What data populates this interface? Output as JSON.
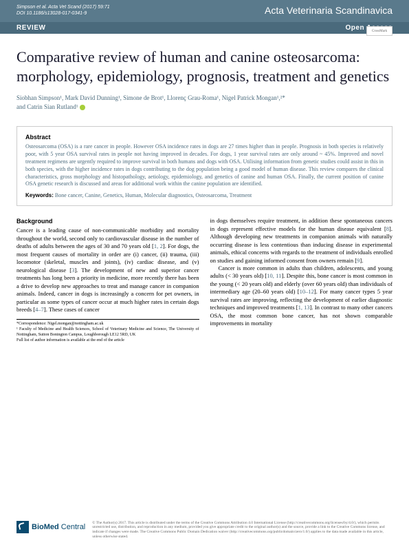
{
  "header": {
    "citation": "Simpson et al. Acta Vet Scand (2017) 59:71",
    "doi": "DOI 10.1186/s13028-017-0341-9",
    "journal": "Acta Veterinaria Scandinavica"
  },
  "review_bar": {
    "label": "REVIEW",
    "access": "Open Access"
  },
  "crossmark": "CrossMark",
  "title": "Comparative review of human and canine osteosarcoma: morphology, epidemiology, prognosis, treatment and genetics",
  "authors_line1": "Siobhan Simpson¹, Mark David Dunning¹, Simone de Brot¹, Llorenç Grau-Roma¹, Nigel Patrick Mongan¹,²*",
  "authors_line2": "and Catrin Sian Rutland¹",
  "abstract": {
    "heading": "Abstract",
    "text": "Osteosarcoma (OSA) is a rare cancer in people. However OSA incidence rates in dogs are 27 times higher than in people. Prognosis in both species is relatively poor, with 5 year OSA survival rates in people not having improved in decades. For dogs, 1 year survival rates are only around ~ 45%. Improved and novel treatment regimens are urgently required to improve survival in both humans and dogs with OSA. Utilising information from genetic studies could assist in this in both species, with the higher incidence rates in dogs contributing to the dog population being a good model of human disease. This review compares the clinical characteristics, gross morphology and histopathology, aetiology, epidemiology, and genetics of canine and human OSA. Finally, the current position of canine OSA genetic research is discussed and areas for additional work within the canine population are identified.",
    "keywords_label": "Keywords:",
    "keywords": "Bone cancer, Canine, Genetics, Human, Molecular diagnostics, Osteosarcoma, Treatment"
  },
  "body": {
    "background_heading": "Background",
    "col1_p1a": "Cancer is a leading cause of non-communicable morbidity and mortality throughout the world, second only to cardiovascular disease in the number of deaths of adults between the ages of 30 and 70 years old [",
    "col1_ref1": "1, 2",
    "col1_p1b": "]. For dogs, the most frequent causes of mortality in order are (i) cancer, (ii) trauma, (iii) locomotor (skeletal, muscles and joints), (iv) cardiac disease, and (v) neurological disease [",
    "col1_ref2": "3",
    "col1_p1c": "]. The development of new and superior cancer treatments has long been a priority in medicine, more recently there has been a drive to develop new approaches to treat and manage cancer in companion animals. Indeed, cancer in dogs is increasingly a concern for pet owners, in particular as some types of cancer occur at much higher rates in certain dogs breeds [",
    "col1_ref3": "4–7",
    "col1_p1d": "]. These cases of cancer",
    "col2_p1a": "in dogs themselves require treatment, in addition these spontaneous cancers in dogs represent effective models for the human disease equivalent [",
    "col2_ref1": "8",
    "col2_p1b": "]. Although developing new treatments in companion animals with naturally occurring disease is less contentious than inducing disease in experimental animals, ethical concerns with regards to the treatment of individuals enrolled on studies and gaining informed consent from owners remain [",
    "col2_ref2": "9",
    "col2_p1c": "].",
    "col2_p2a": "Cancer is more common in adults than children, adolescents, and young adults (< 30 years old) [",
    "col2_ref3": "10, 11",
    "col2_p2b": "]. Despite this, bone cancer is most common in the young (< 20 years old) and elderly (over 60 years old) than individuals of intermediary age (20–60 years old) [",
    "col2_ref4": "10–12",
    "col2_p2c": "]. For many cancer types 5 year survival rates are improving, reflecting the development of earlier diagnostic techniques and improved treatments [",
    "col2_ref5": "1, 13",
    "col2_p2d": "]. In contrast to many other cancers OSA, the most common bone cancer, has not shown comparable improvements in mortality"
  },
  "correspondence": {
    "line1": "*Correspondence: Nigel.mongan@nottingham.ac.uk",
    "line2": "¹ Faculty of Medicine and Health Sciences, School of Veterinary Medicine and Science, The University of Nottingham, Sutton Bonington Campus, Loughborough LE12 5RD, UK",
    "line3": "Full list of author information is available at the end of the article"
  },
  "footer": {
    "bmc": "BioMed Central",
    "license": "© The Author(s) 2017. This article is distributed under the terms of the Creative Commons Attribution 4.0 International License (http://creativecommons.org/licenses/by/4.0/), which permits unrestricted use, distribution, and reproduction in any medium, provided you give appropriate credit to the original author(s) and the source, provide a link to the Creative Commons license, and indicate if changes were made. The Creative Commons Public Domain Dedication waiver (http://creativecommons.org/publicdomain/zero/1.0/) applies to the data made available in this article, unless otherwise stated."
  }
}
